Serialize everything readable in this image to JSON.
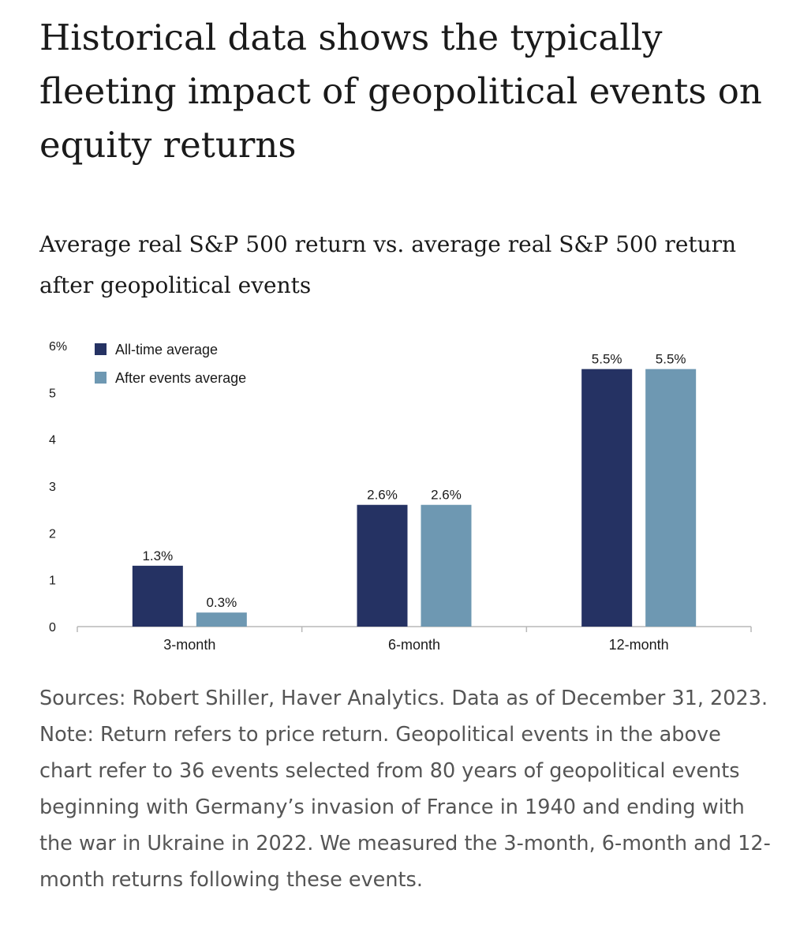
{
  "title": "Historical data shows the typically fleeting impact of geopolitical events on equity returns",
  "subtitle": "Average real S&P 500 return vs. average real S&P 500 return after geopolitical events",
  "note": "Sources: Robert Shiller, Haver Analytics. Data as of December 31, 2023. Note: Return refers to price return. Geopolitical events in the above chart refer to 36 events selected from 80 years of geopolitical events beginning with Germany’s invasion of France in 1940 and ending with the war in Ukraine in 2022. We measured the 3-month, 6-month and 12-month returns following these events.",
  "chart_data": {
    "type": "bar",
    "categories": [
      "3-month",
      "6-month",
      "12-month"
    ],
    "series": [
      {
        "name": "All-time average",
        "color": "#253263",
        "values": [
          1.3,
          2.6,
          5.5
        ],
        "labels": [
          "1.3%",
          "2.6%",
          "5.5%"
        ]
      },
      {
        "name": "After events average",
        "color": "#6e98b2",
        "values": [
          0.3,
          2.6,
          5.5
        ],
        "labels": [
          "0.3%",
          "2.6%",
          "5.5%"
        ]
      }
    ],
    "y_ticks": [
      "0",
      "1",
      "2",
      "3",
      "4",
      "5",
      "6%"
    ],
    "ylim": [
      0,
      6
    ],
    "grid": false,
    "legend_position": "top-left"
  }
}
